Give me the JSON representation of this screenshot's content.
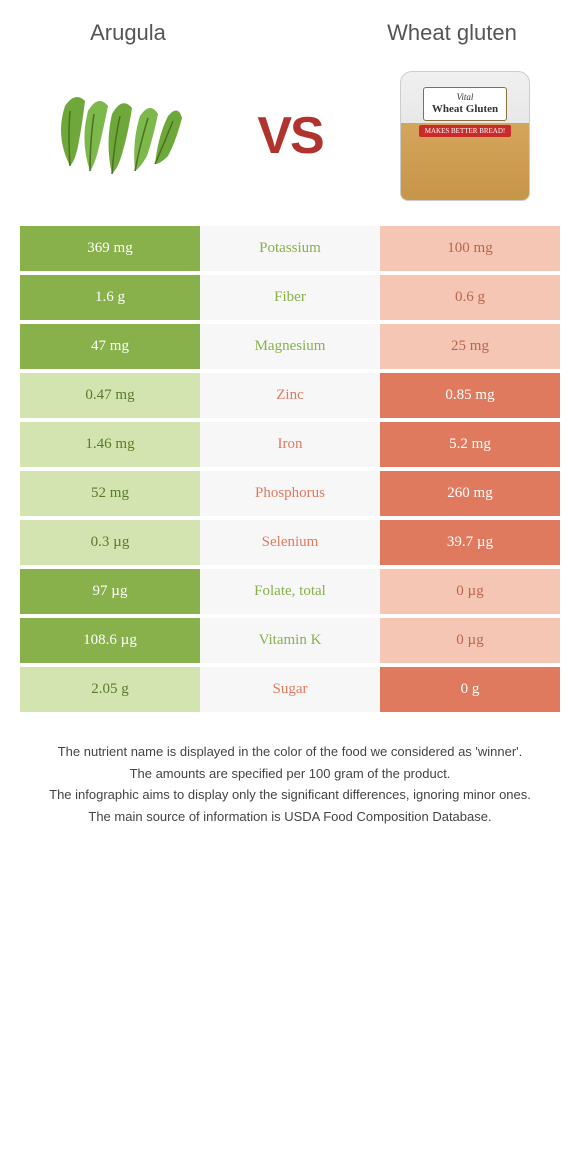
{
  "header": {
    "left_title": "Arugula",
    "right_title": "Wheat gluten",
    "vs_text": "VS"
  },
  "colors": {
    "green_win": "#88b04b",
    "green_lose": "#d4e4b0",
    "orange_win": "#e07a5f",
    "orange_lose": "#f4c6b3"
  },
  "can": {
    "label_top": "Vital",
    "label_bottom": "Wheat Gluten",
    "banner": "MAKES BETTER BREAD!"
  },
  "rows": [
    {
      "nutrient": "Potassium",
      "left": "369 mg",
      "right": "100 mg",
      "winner": "left"
    },
    {
      "nutrient": "Fiber",
      "left": "1.6 g",
      "right": "0.6 g",
      "winner": "left"
    },
    {
      "nutrient": "Magnesium",
      "left": "47 mg",
      "right": "25 mg",
      "winner": "left"
    },
    {
      "nutrient": "Zinc",
      "left": "0.47 mg",
      "right": "0.85 mg",
      "winner": "right"
    },
    {
      "nutrient": "Iron",
      "left": "1.46 mg",
      "right": "5.2 mg",
      "winner": "right"
    },
    {
      "nutrient": "Phosphorus",
      "left": "52 mg",
      "right": "260 mg",
      "winner": "right"
    },
    {
      "nutrient": "Selenium",
      "left": "0.3 µg",
      "right": "39.7 µg",
      "winner": "right"
    },
    {
      "nutrient": "Folate, total",
      "left": "97 µg",
      "right": "0 µg",
      "winner": "left"
    },
    {
      "nutrient": "Vitamin K",
      "left": "108.6 µg",
      "right": "0 µg",
      "winner": "left"
    },
    {
      "nutrient": "Sugar",
      "left": "2.05 g",
      "right": "0 g",
      "winner": "right"
    }
  ],
  "footer": {
    "line1": "The nutrient name is displayed in the color of the food we considered as 'winner'.",
    "line2": "The amounts are specified per 100 gram of the product.",
    "line3": "The infographic aims to display only the significant differences, ignoring minor ones.",
    "line4": "The main source of information is USDA Food Composition Database."
  }
}
